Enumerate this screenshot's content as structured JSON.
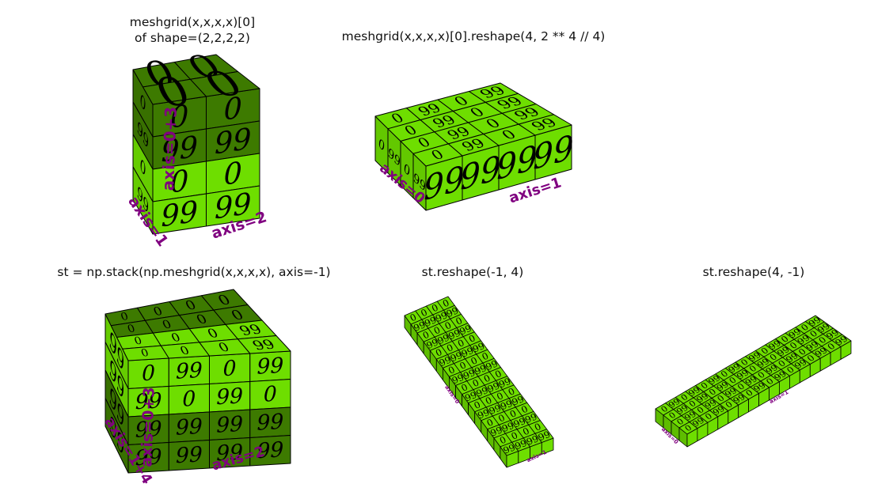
{
  "colors": {
    "light_green": "#6ede00",
    "dark_green": "#3d7a00",
    "mid_green": "#5cb800",
    "edge": "#000000",
    "axis_label": "#800080"
  },
  "panels": [
    {
      "title_lines": [
        "meshgrid(x,x,x,x)[0]",
        "of shape=(2,2,2,2)"
      ],
      "axis_labels": [
        "axis=1",
        "axis=2",
        "axis=0+3"
      ],
      "cell_values": [
        "0",
        "99"
      ]
    },
    {
      "title_lines": [
        "meshgrid(x,x,x,x)[0].reshape(4, 2 ** 4 // 4)"
      ],
      "axis_labels": [
        "axis=0",
        "axis=1"
      ],
      "cell_values": [
        "0",
        "99"
      ]
    },
    {
      "title_lines": [
        "st = np.stack(np.meshgrid(x,x,x,x), axis=-1)"
      ],
      "axis_labels": [
        "axis=1+4",
        "axis=2",
        "axis=0+3"
      ],
      "cell_values": [
        "0",
        "99"
      ]
    },
    {
      "title_lines": [
        "st.reshape(-1, 4)"
      ],
      "axis_labels": [
        "axis=0",
        "axis=1"
      ],
      "cell_values": [
        "0",
        "99"
      ]
    },
    {
      "title_lines": [
        "st.reshape(4, -1)"
      ],
      "axis_labels": [
        "axis=0",
        "axis=1"
      ],
      "cell_values": [
        "0",
        "99"
      ]
    }
  ]
}
